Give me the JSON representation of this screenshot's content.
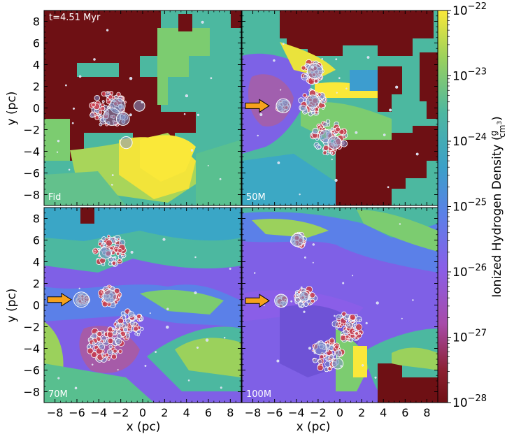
{
  "chart_data": {
    "type": "heatmap",
    "time_label": "t=4.51 Myr",
    "xlabel": "x  (pc)",
    "ylabel": "y  (pc)",
    "xlim": [
      -9,
      9
    ],
    "ylim": [
      -9,
      9
    ],
    "xticks": [
      -8,
      -6,
      -4,
      -2,
      0,
      2,
      4,
      6,
      8
    ],
    "yticks": [
      -8,
      -6,
      -4,
      -2,
      0,
      2,
      4,
      6,
      8
    ],
    "colorbar": {
      "label": "Ionized Hydrogen Density",
      "unit_num": "g",
      "unit_den": "cm",
      "unit_den_exp": "3",
      "scale": "log",
      "range": [
        1e-28,
        1e-22
      ],
      "tick_base": "10",
      "tick_exponents": [
        "−22",
        "−23",
        "−24",
        "−25",
        "−26",
        "−27",
        "−28"
      ],
      "colors": [
        "#fae839",
        "#9bd15c",
        "#4db7a0",
        "#3ba0c8",
        "#5b80e8",
        "#8a5ee8",
        "#a74ba8",
        "#8b2030",
        "#6e1014"
      ]
    },
    "panels": [
      {
        "label": "Fid",
        "arrow": false,
        "clusters": [
          {
            "x": -3,
            "y": -0.2,
            "spread": 1.2,
            "big": [
              [
                -2.3,
                0.2,
                0.7
              ],
              [
                -2.8,
                -0.8,
                0.8
              ],
              [
                -1.8,
                -1.0,
                0.6
              ],
              [
                -1.5,
                -3.2,
                0.55
              ],
              [
                -0.3,
                0.2,
                0.5
              ]
            ]
          }
        ]
      },
      {
        "label": "50M",
        "arrow": true,
        "arrow_y": 0.2,
        "clusters": [
          {
            "x": -2.5,
            "y": 3.3,
            "spread": 0.7,
            "big": [
              [
                -2.3,
                3.4,
                0.7
              ]
            ]
          },
          {
            "x": -2.5,
            "y": 0.5,
            "spread": 0.8,
            "big": [
              [
                -2.5,
                0.6,
                0.6
              ]
            ]
          },
          {
            "x": -1,
            "y": -2.7,
            "spread": 1.1,
            "big": [
              [
                -1.3,
                -2.6,
                0.6
              ],
              [
                -0.5,
                -3.2,
                0.6
              ]
            ]
          },
          {
            "x": -5.3,
            "y": 0.2,
            "spread": 0.3,
            "big": [
              [
                -5.2,
                0.2,
                0.65
              ]
            ]
          }
        ]
      },
      {
        "label": "70M",
        "arrow": true,
        "arrow_y": 0.5,
        "clusters": [
          {
            "x": -3,
            "y": 5,
            "spread": 1.0,
            "big": [
              [
                -3.4,
                4.8,
                0.55
              ]
            ]
          },
          {
            "x": -3,
            "y": 0.8,
            "spread": 0.6,
            "big": [
              [
                -3.0,
                0.8,
                0.6
              ]
            ]
          },
          {
            "x": -1.2,
            "y": -1.8,
            "spread": 0.9,
            "big": []
          },
          {
            "x": -3.4,
            "y": -3.6,
            "spread": 1.1,
            "big": []
          },
          {
            "x": -5.5,
            "y": 0.5,
            "spread": 0.3,
            "big": [
              [
                -5.6,
                0.5,
                0.7
              ]
            ]
          }
        ]
      },
      {
        "label": "100M",
        "arrow": true,
        "arrow_y": 0.4,
        "clusters": [
          {
            "x": -3.8,
            "y": 6,
            "spread": 0.4,
            "big": [
              [
                -3.9,
                6.0,
                0.6
              ]
            ]
          },
          {
            "x": -3.2,
            "y": 0.7,
            "spread": 0.6,
            "big": [
              [
                -3.3,
                0.8,
                0.45
              ]
            ]
          },
          {
            "x": 0.8,
            "y": -2.0,
            "spread": 0.9,
            "big": []
          },
          {
            "x": -1.2,
            "y": -4.6,
            "spread": 1.0,
            "big": [
              [
                -1.8,
                -4.0,
                0.6
              ],
              [
                -0.2,
                -5.4,
                0.5
              ]
            ]
          },
          {
            "x": -5.4,
            "y": 0.4,
            "spread": 0.3,
            "big": [
              [
                -5.4,
                0.4,
                0.6
              ]
            ]
          }
        ]
      }
    ]
  }
}
